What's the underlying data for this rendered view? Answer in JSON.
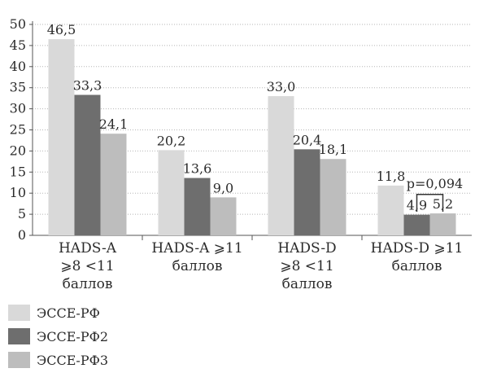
{
  "chart_data": {
    "type": "bar",
    "categories": [
      [
        "HADS-A",
        "⩾8 <11",
        "баллов"
      ],
      [
        "HADS-A ⩾11",
        "баллов"
      ],
      [
        "HADS-D",
        "⩾8 <11",
        "баллов"
      ],
      [
        "HADS-D ⩾11",
        "баллов"
      ]
    ],
    "series": [
      {
        "name": "ЭССЕ-РФ",
        "color": "#d9d9d9",
        "values": [
          46.5,
          20.2,
          33.0,
          11.8
        ],
        "labels": [
          "46,5",
          "20,2",
          "33,0",
          "11,8"
        ]
      },
      {
        "name": "ЭССЕ-РФ2",
        "color": "#6e6e6e",
        "values": [
          33.3,
          13.6,
          20.4,
          4.9
        ],
        "labels": [
          "33,3",
          "13,6",
          "20,4",
          "4,9"
        ]
      },
      {
        "name": "ЭССЕ-РФ3",
        "color": "#bdbdbd",
        "values": [
          24.1,
          9.0,
          18.1,
          5.2
        ],
        "labels": [
          "24,1",
          "9,0",
          "18,1",
          "5,2"
        ]
      }
    ],
    "ylim": [
      0,
      50
    ],
    "yticks": [
      0,
      5,
      10,
      15,
      20,
      25,
      30,
      35,
      40,
      45,
      50
    ],
    "grid": true,
    "legend_position": "bottom-left",
    "annotation": {
      "text": "p=0,094",
      "category_index": 3,
      "between_series": [
        1,
        2
      ]
    }
  }
}
